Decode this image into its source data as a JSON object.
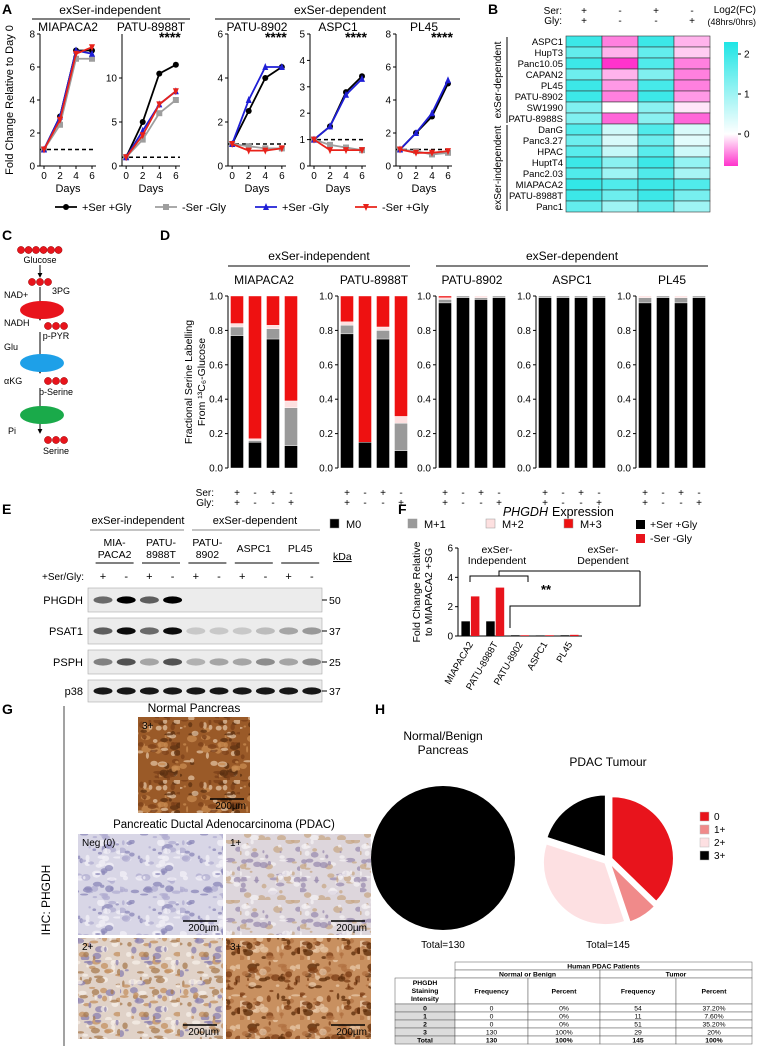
{
  "panel_labels": [
    "A",
    "B",
    "C",
    "D",
    "E",
    "F",
    "G",
    "H"
  ],
  "chart_data": [
    {
      "type": "line",
      "groups": [
        "exSer-independent",
        "exSer-dependent"
      ],
      "ylabel": "Fold Change Relative to Day 0",
      "xlabel": "Days",
      "x": [
        0,
        2,
        4,
        6
      ],
      "xlim": [
        -0.5,
        6.5
      ],
      "xticks": [
        0,
        2,
        4,
        6
      ],
      "reference_line": 1,
      "legend": [
        {
          "name": "+Ser +Gly",
          "color": "#000000",
          "marker": "circle"
        },
        {
          "name": "-Ser -Gly",
          "color": "#9e9e9e",
          "marker": "square"
        },
        {
          "name": "+Ser -Gly",
          "color": "#1f1fd6",
          "marker": "triangle-up"
        },
        {
          "name": "-Ser +Gly",
          "color": "#e8221a",
          "marker": "triangle-down"
        }
      ],
      "subplots": [
        {
          "title": "MIAPACA2",
          "ylim": [
            0,
            8
          ],
          "yticks": [
            0,
            2,
            4,
            6,
            8
          ],
          "series": [
            {
              "values": [
                1,
                3,
                7,
                7
              ]
            },
            {
              "values": [
                1,
                2.5,
                6.5,
                6.5
              ]
            },
            {
              "values": [
                1,
                3,
                7,
                6.8
              ]
            },
            {
              "values": [
                1,
                2.8,
                6.8,
                7.2
              ]
            }
          ]
        },
        {
          "title": "PATU-8988T",
          "ylim": [
            0,
            15
          ],
          "yticks": [
            0,
            5,
            10
          ],
          "annotation": "****",
          "series": [
            {
              "values": [
                1,
                5,
                10.5,
                11.5
              ]
            },
            {
              "values": [
                1,
                3,
                6,
                7.5
              ]
            },
            {
              "values": [
                1,
                4,
                7,
                8.5
              ]
            },
            {
              "values": [
                1,
                3.5,
                7,
                8.5
              ]
            }
          ]
        },
        {
          "title": "PATU-8902",
          "ylim": [
            0,
            6
          ],
          "yticks": [
            0,
            2,
            4,
            6
          ],
          "annotation": "****",
          "series": [
            {
              "values": [
                1,
                2.5,
                4,
                4.5
              ]
            },
            {
              "values": [
                1,
                0.9,
                0.8,
                0.8
              ]
            },
            {
              "values": [
                1,
                3,
                4.5,
                4.5
              ]
            },
            {
              "values": [
                1,
                0.7,
                0.7,
                0.8
              ]
            }
          ]
        },
        {
          "title": "ASPC1",
          "ylim": [
            0,
            5
          ],
          "yticks": [
            0,
            1,
            2,
            3,
            4,
            5
          ],
          "annotation": "****",
          "series": [
            {
              "values": [
                1,
                1.5,
                2.8,
                3.4
              ]
            },
            {
              "values": [
                1,
                0.8,
                0.7,
                0.6
              ]
            },
            {
              "values": [
                1,
                1.5,
                2.7,
                3.3
              ]
            },
            {
              "values": [
                1,
                0.6,
                0.6,
                0.6
              ]
            }
          ]
        },
        {
          "title": "PL45",
          "ylim": [
            0,
            8
          ],
          "yticks": [
            0,
            2,
            4,
            6,
            8
          ],
          "annotation": "****",
          "series": [
            {
              "values": [
                1,
                2,
                3,
                5
              ]
            },
            {
              "values": [
                1,
                0.9,
                0.7,
                0.8
              ]
            },
            {
              "values": [
                1,
                2,
                3.2,
                5.2
              ]
            },
            {
              "values": [
                1,
                0.8,
                0.8,
                0.9
              ]
            }
          ]
        }
      ]
    },
    {
      "type": "heatmap",
      "column_headers": [
        {
          "label": "Ser:",
          "signs": [
            "+",
            "-",
            "+",
            "-"
          ]
        },
        {
          "label": "Gly:",
          "signs": [
            "+",
            "-",
            "-",
            "+"
          ]
        }
      ],
      "row_groups": [
        "exSer-dependent",
        "exSer-independent"
      ],
      "row_labels": [
        "ASPC1",
        "HupT3",
        "Panc10.05",
        "CAPAN2",
        "PL45",
        "PATU-8902",
        "SW1990",
        "PATU-8988S",
        "DanG",
        "Panc3.27",
        "HPAC",
        "HuptT4",
        "Panc2.03",
        "MIAPACA2",
        "PATU-8988T",
        "Panc1"
      ],
      "values": [
        [
          2,
          -0.5,
          2,
          -0.3
        ],
        [
          1.6,
          -0.3,
          1.6,
          -0.2
        ],
        [
          2,
          -0.8,
          1.8,
          -0.5
        ],
        [
          1.5,
          -0.3,
          1.3,
          -0.5
        ],
        [
          2,
          -0.4,
          1.9,
          -0.5
        ],
        [
          2,
          -0.5,
          2,
          -0.4
        ],
        [
          1.3,
          0,
          1.2,
          -0.1
        ],
        [
          1.3,
          -0.6,
          1.2,
          -0.6
        ],
        [
          1.8,
          0.5,
          1.8,
          0.4
        ],
        [
          1.5,
          0.4,
          1.5,
          0.3
        ],
        [
          1.7,
          0.6,
          1.7,
          0.5
        ],
        [
          2,
          1.2,
          2,
          1.1
        ],
        [
          1.8,
          1,
          1.8,
          0.9
        ],
        [
          2.1,
          1.8,
          2,
          1.8
        ],
        [
          2,
          1.5,
          2,
          1.4
        ],
        [
          1.6,
          1,
          1.6,
          1
        ]
      ],
      "clim": [
        -0.8,
        2.3
      ],
      "colorbar_label": [
        "Log2(FC)",
        "(48hrs/0hrs)"
      ],
      "colorbar_ticks": [
        0,
        1,
        2
      ],
      "colors": {
        "low": "#ff33cc",
        "mid": "#ffffff",
        "high": "#1fe5e5"
      }
    },
    {
      "type": "stacked-bar",
      "groups": [
        "exSer-independent",
        "exSer-dependent"
      ],
      "ylabel": [
        "Fractional Serine Labelling",
        "From ¹³C₆-Glucose"
      ],
      "ylim": [
        0,
        1
      ],
      "yticks": [
        {
          "value": 0,
          "label": "0.0"
        },
        {
          "value": 0.2,
          "label": "0.2"
        },
        {
          "value": 0.4,
          "label": "0.4"
        },
        {
          "value": 0.6,
          "label": "0.6"
        },
        {
          "value": 0.8,
          "label": "0.8"
        },
        {
          "value": 1,
          "label": "1.0"
        }
      ],
      "condition_rows": [
        {
          "label": "Ser:",
          "signs": [
            "+",
            "-",
            "+",
            "-"
          ]
        },
        {
          "label": "Gly:",
          "signs": [
            "+",
            "-",
            "-",
            "+"
          ]
        }
      ],
      "legend": [
        {
          "name": "M0",
          "color": "#000000"
        },
        {
          "name": "M+1",
          "color": "#9a9a9a"
        },
        {
          "name": "M+2",
          "color": "#fde0e0"
        },
        {
          "name": "M+3",
          "color": "#ee1111"
        }
      ],
      "subplots": [
        {
          "title": "MIAPACA2",
          "series": [
            {
              "values": [
                0.77,
                0.15,
                0.75,
                0.13
              ]
            },
            {
              "values": [
                0.05,
                0.01,
                0.06,
                0.22
              ]
            },
            {
              "values": [
                0.02,
                0.01,
                0.02,
                0.04
              ]
            },
            {
              "values": [
                0.16,
                0.83,
                0.17,
                0.61
              ]
            }
          ]
        },
        {
          "title": "PATU-8988T",
          "series": [
            {
              "values": [
                0.78,
                0.15,
                0.75,
                0.1
              ]
            },
            {
              "values": [
                0.05,
                0,
                0.05,
                0.16
              ]
            },
            {
              "values": [
                0.02,
                0,
                0.02,
                0.04
              ]
            },
            {
              "values": [
                0.15,
                0.85,
                0.18,
                0.7
              ]
            }
          ]
        },
        {
          "title": "PATU-8902",
          "series": [
            {
              "values": [
                0.96,
                0.99,
                0.98,
                0.99
              ]
            },
            {
              "values": [
                0.02,
                0.01,
                0.01,
                0.01
              ]
            },
            {
              "values": [
                0.01,
                0,
                0.01,
                0
              ]
            },
            {
              "values": [
                0.01,
                0,
                0,
                0
              ]
            }
          ]
        },
        {
          "title": "ASPC1",
          "series": [
            {
              "values": [
                0.99,
                0.99,
                0.99,
                0.99
              ]
            },
            {
              "values": [
                0.01,
                0.01,
                0.01,
                0.01
              ]
            },
            {
              "values": [
                0,
                0,
                0,
                0
              ]
            },
            {
              "values": [
                0,
                0,
                0,
                0
              ]
            }
          ]
        },
        {
          "title": "PL45",
          "series": [
            {
              "values": [
                0.96,
                0.99,
                0.96,
                0.99
              ]
            },
            {
              "values": [
                0.03,
                0.01,
                0.03,
                0.01
              ]
            },
            {
              "values": [
                0.01,
                0,
                0.01,
                0
              ]
            },
            {
              "values": [
                0,
                0,
                0,
                0
              ]
            }
          ]
        }
      ]
    },
    {
      "type": "bar",
      "gene": "PHGDH",
      "title": "Expression",
      "ylabel": [
        "Fold Change Relative",
        "to MIAPACA2 +SG"
      ],
      "categories": [
        "MIAPACA2",
        "PATU-8988T",
        "PATU-8902",
        "ASPC1",
        "PL45"
      ],
      "series": [
        {
          "name": "+Ser +Gly",
          "color": "#000000",
          "values": [
            1,
            1,
            0.05,
            0.04,
            0.05
          ]
        },
        {
          "name": "-Ser -Gly",
          "color": "#e8141c",
          "values": [
            2.7,
            3.3,
            0.05,
            0.05,
            0.08
          ]
        }
      ],
      "ylim": [
        0,
        6
      ],
      "yticks": [
        0,
        2,
        4,
        6
      ],
      "groups": [
        [
          "exSer-",
          "Independent"
        ],
        [
          "exSer-",
          "Dependent"
        ]
      ],
      "significance": "**"
    },
    {
      "type": "pie",
      "categories": [
        "0",
        "1+",
        "2+",
        "3+"
      ],
      "colors": [
        "#e8141c",
        "#f08a8a",
        "#fde0e2",
        "#000000"
      ],
      "series": [
        {
          "title": [
            "Normal/Benign",
            "Pancreas"
          ],
          "values": [
            0,
            0,
            0,
            130
          ],
          "total_label": "Total=130"
        },
        {
          "title": [
            "PDAC Tumour"
          ],
          "values": [
            54,
            11,
            51,
            29
          ],
          "total_label": "Total=145"
        }
      ]
    }
  ],
  "pathway": {
    "metabolites": [
      "Glucose",
      "3PG",
      "p-PYR",
      "p-Serine",
      "Serine"
    ],
    "cofactors": [
      "NAD+",
      "NADH",
      "Glu",
      "αKG",
      "Pi"
    ]
  },
  "western_blot": {
    "groups": [
      "exSer-independent",
      "exSer-dependent"
    ],
    "lanes": [
      [
        "MIA-",
        "PACA2"
      ],
      [
        "PATU-",
        "8988T"
      ],
      [
        "PATU-",
        "8902"
      ],
      [
        "ASPC1"
      ],
      [
        "PL45"
      ]
    ],
    "kda_label": "kDa",
    "treatment_label": "+Ser/Gly:",
    "treatment_signs": [
      "+",
      "-",
      "+",
      "-",
      "+",
      "-",
      "+",
      "-",
      "+",
      "-"
    ],
    "proteins": [
      {
        "name": "PHGDH",
        "marker": "50"
      },
      {
        "name": "PSAT1",
        "marker": "37"
      },
      {
        "name": "PSPH",
        "marker": "25"
      },
      {
        "name": "p38",
        "marker": "37"
      }
    ]
  },
  "ihc": {
    "label": "IHC: PHGDH",
    "normal": {
      "title": "Normal Pancreas",
      "score": "3+",
      "scale": "200µm"
    },
    "pdac_title": "Pancreatic Ductal Adenocarcinoma (PDAC)",
    "pdac": [
      {
        "score": "Neg (0)",
        "scale": "200µm"
      },
      {
        "score": "1+",
        "scale": "200µm"
      },
      {
        "score": "2+",
        "scale": "200µm"
      },
      {
        "score": "3+",
        "scale": "200µm"
      }
    ]
  },
  "table": {
    "title": "Human PDAC Patients",
    "groups": [
      "Normal or Benign",
      "Tumor"
    ],
    "row_header": [
      "PHGDH",
      "Staining",
      "Intensity"
    ],
    "columns": [
      "Frequency",
      "Percent",
      "Frequency",
      "Percent"
    ],
    "rows": [
      [
        "0",
        "0",
        "0%",
        "54",
        "37.20%"
      ],
      [
        "1",
        "0",
        "0%",
        "11",
        "7.60%"
      ],
      [
        "2",
        "0",
        "0%",
        "51",
        "35.20%"
      ],
      [
        "3",
        "130",
        "100%",
        "29",
        "20%"
      ],
      [
        "Total",
        "130",
        "100%",
        "145",
        "100%"
      ]
    ]
  }
}
